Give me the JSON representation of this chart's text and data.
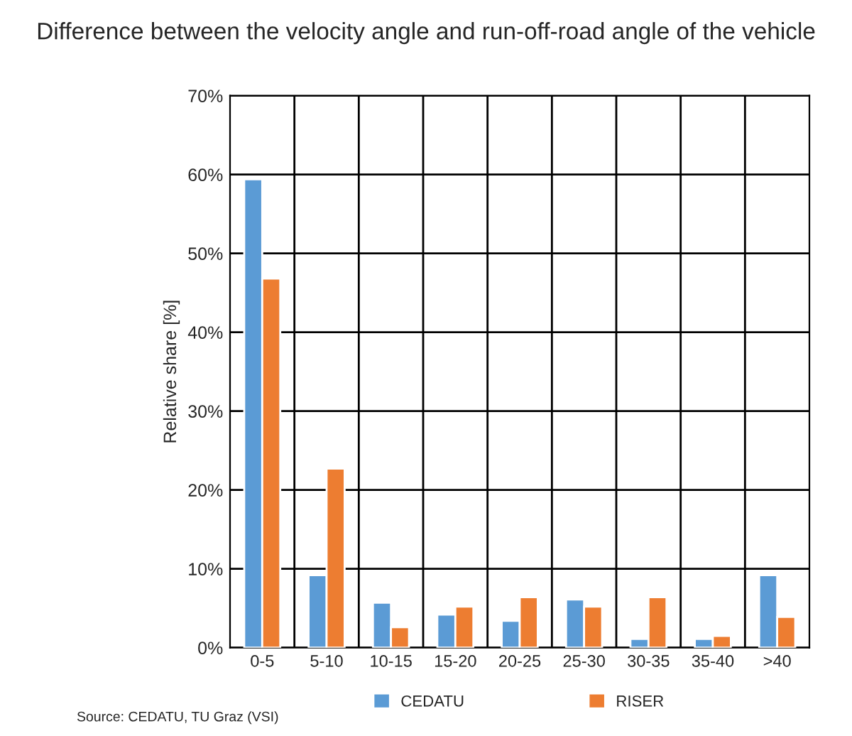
{
  "chart_data": {
    "type": "bar",
    "title": "Difference between the velocity angle and run-off-road angle of the vehicle",
    "ylabel": "Relative share [%]",
    "categories": [
      "0-5",
      "5-10",
      "10-15",
      "15-20",
      "20-25",
      "25-30",
      "30-35",
      "35-40",
      ">40"
    ],
    "series": [
      {
        "name": "CEDATU",
        "color": "#5b9bd5",
        "values": [
          59.4,
          9.2,
          5.7,
          4.2,
          3.4,
          6.1,
          1.1,
          1.1,
          9.2
        ]
      },
      {
        "name": "RISER",
        "color": "#ed7d31",
        "values": [
          46.8,
          22.7,
          2.6,
          5.2,
          6.4,
          5.2,
          6.4,
          1.5,
          3.9
        ]
      }
    ],
    "ylim": [
      0,
      70
    ],
    "yticks": [
      {
        "value": 0,
        "label": "0%"
      },
      {
        "value": 10,
        "label": "10%"
      },
      {
        "value": 20,
        "label": "20%"
      },
      {
        "value": 30,
        "label": "30%"
      },
      {
        "value": 40,
        "label": "40%"
      },
      {
        "value": 50,
        "label": "50%"
      },
      {
        "value": 60,
        "label": "60%"
      },
      {
        "value": 70,
        "label": "70%"
      }
    ],
    "grid": true,
    "legend": "bottom",
    "annotations": [
      "Source: CEDATU, TU Graz (VSI)"
    ]
  }
}
